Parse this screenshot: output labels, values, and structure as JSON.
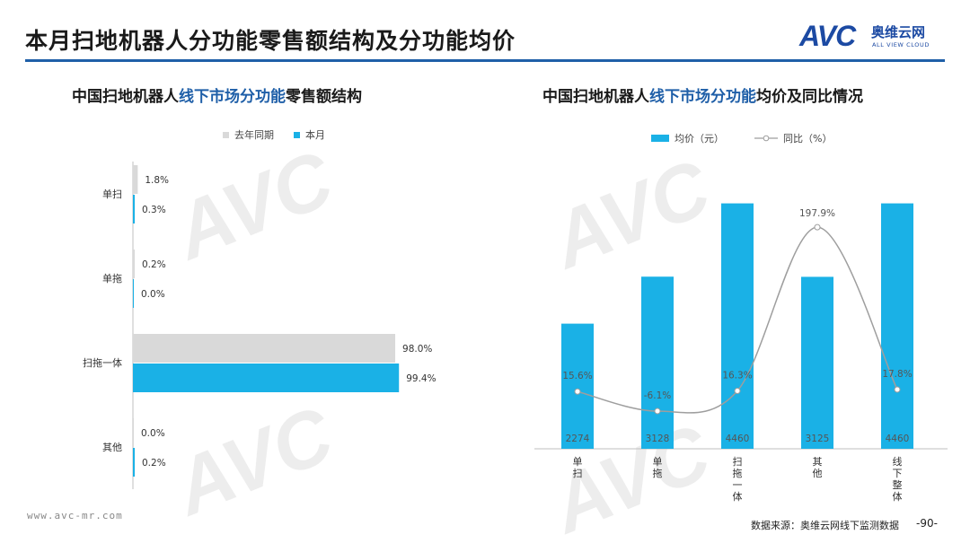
{
  "header": {
    "title": "本月扫地机器人分功能零售额结构及分功能均价",
    "logo_text": "AVC",
    "logo_cn": "奥维云网",
    "logo_en": "ALL VIEW CLOUD"
  },
  "colors": {
    "accent": "#1f5fa8",
    "bar_current": "#1ab1e6",
    "bar_prev": "#d9d9d9",
    "line": "#9e9e9e"
  },
  "watermark": {
    "text": "AVC",
    "cn": "奥维云网",
    "en": "ALL VIEW CLOUD"
  },
  "chart_data": [
    {
      "type": "bar",
      "orientation": "horizontal",
      "title_parts": [
        "中国扫地机器人",
        "线下市场分功能",
        "零售额结构"
      ],
      "categories": [
        "单扫",
        "单拖",
        "扫拖一体",
        "其他"
      ],
      "series": [
        {
          "name": "去年同期",
          "values": [
            1.8,
            0.2,
            98.0,
            0.0
          ],
          "labels": [
            "1.8%",
            "0.2%",
            "98.0%",
            "0.0%"
          ]
        },
        {
          "name": "本月",
          "values": [
            0.3,
            0.0,
            99.4,
            0.2
          ],
          "labels": [
            "0.3%",
            "0.0%",
            "99.4%",
            "0.2%"
          ]
        }
      ],
      "xlim": [
        0,
        100
      ],
      "legend": "top"
    },
    {
      "type": "bar",
      "title_parts": [
        "中国扫地机器人",
        "线下市场分功能",
        "均价及同比情况"
      ],
      "categories": [
        "单扫",
        "单拖",
        "扫拖一体",
        "其他",
        "线下整体"
      ],
      "series": [
        {
          "name": "均价（元）",
          "type": "bar",
          "values": [
            2274,
            3128,
            4460,
            3125,
            4460
          ]
        },
        {
          "name": "同比（%）",
          "type": "line",
          "values": [
            15.6,
            -6.1,
            16.3,
            197.9,
            17.8
          ],
          "labels": [
            "15.6%",
            "-6.1%",
            "16.3%",
            "197.9%",
            "17.8%"
          ]
        }
      ],
      "ylim_bar": [
        0,
        4600
      ],
      "legend": "top"
    }
  ],
  "footer": {
    "url": "www.avc-mr.com",
    "source": "数据来源：奥维云网线下监测数据",
    "page": "-90-"
  }
}
